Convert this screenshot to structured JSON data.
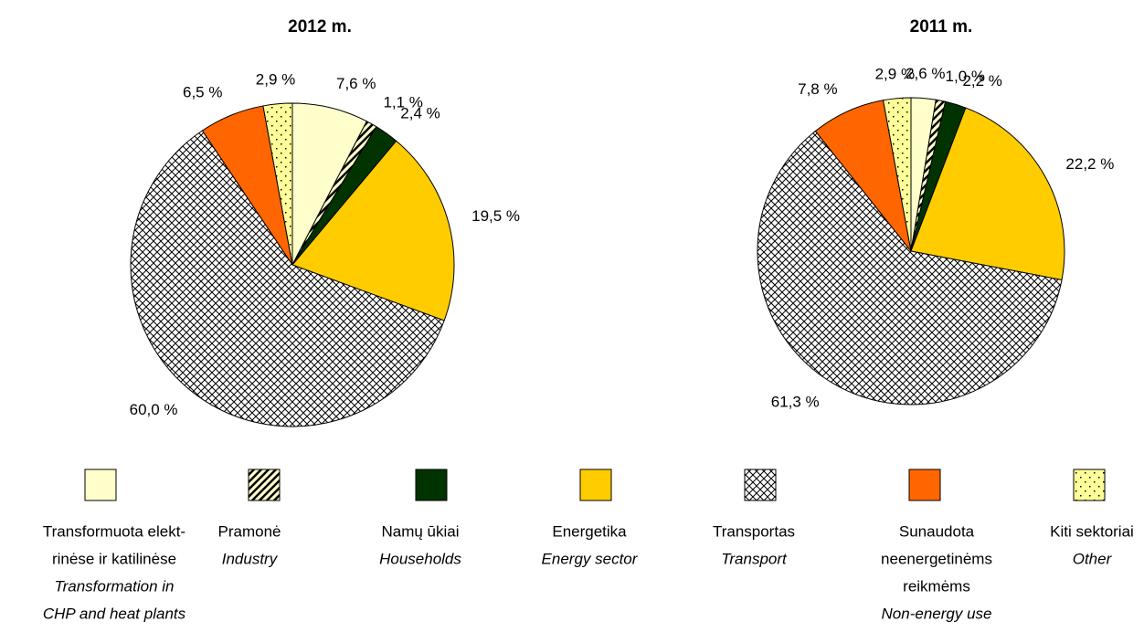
{
  "chart_data": [
    {
      "type": "pie",
      "title": "2012 m.",
      "values": [
        7.6,
        1.1,
        2.4,
        19.5,
        60.0,
        6.5,
        2.9
      ],
      "value_labels": [
        "7,6 %",
        "1,1 %",
        "2,4 %",
        "19,5 %",
        "60,0 %",
        "6,5 %",
        "2,9 %"
      ]
    },
    {
      "type": "pie",
      "title": "2011 m.",
      "values": [
        2.6,
        1.0,
        2.2,
        22.2,
        61.3,
        7.8,
        2.9
      ],
      "value_labels": [
        "2,6 %",
        "1,0 %",
        "2,2 %",
        "22,2 %",
        "61,3 %",
        "7,8 %",
        "2,9 %"
      ]
    }
  ],
  "legend": {
    "categories": [
      {
        "lt": [
          "Transformuota elekt-",
          "rinėse ir katilinėse"
        ],
        "en": [
          "Transformation in",
          "CHP and heat plants"
        ]
      },
      {
        "lt": [
          "Pramonė"
        ],
        "en": [
          "Industry"
        ]
      },
      {
        "lt": [
          "Namų ūkiai"
        ],
        "en": [
          "Households"
        ]
      },
      {
        "lt": [
          "Energetika"
        ],
        "en": [
          "Energy sector"
        ]
      },
      {
        "lt": [
          "Transportas"
        ],
        "en": [
          "Transport"
        ]
      },
      {
        "lt": [
          "Sunaudota",
          "neenergetinėms",
          "reikmėms"
        ],
        "en": [
          "Non-energy use"
        ]
      },
      {
        "lt": [
          "Kiti sektoriai"
        ],
        "en": [
          "Other"
        ]
      }
    ],
    "colors": [
      "#ffffcc",
      "#ffffcc",
      "#003300",
      "#ffcc00",
      "#ffffff",
      "#ff6600",
      "#ffff99"
    ],
    "patterns": [
      "none",
      "diagonal",
      "none",
      "none",
      "crosshatch",
      "none",
      "dots"
    ]
  }
}
